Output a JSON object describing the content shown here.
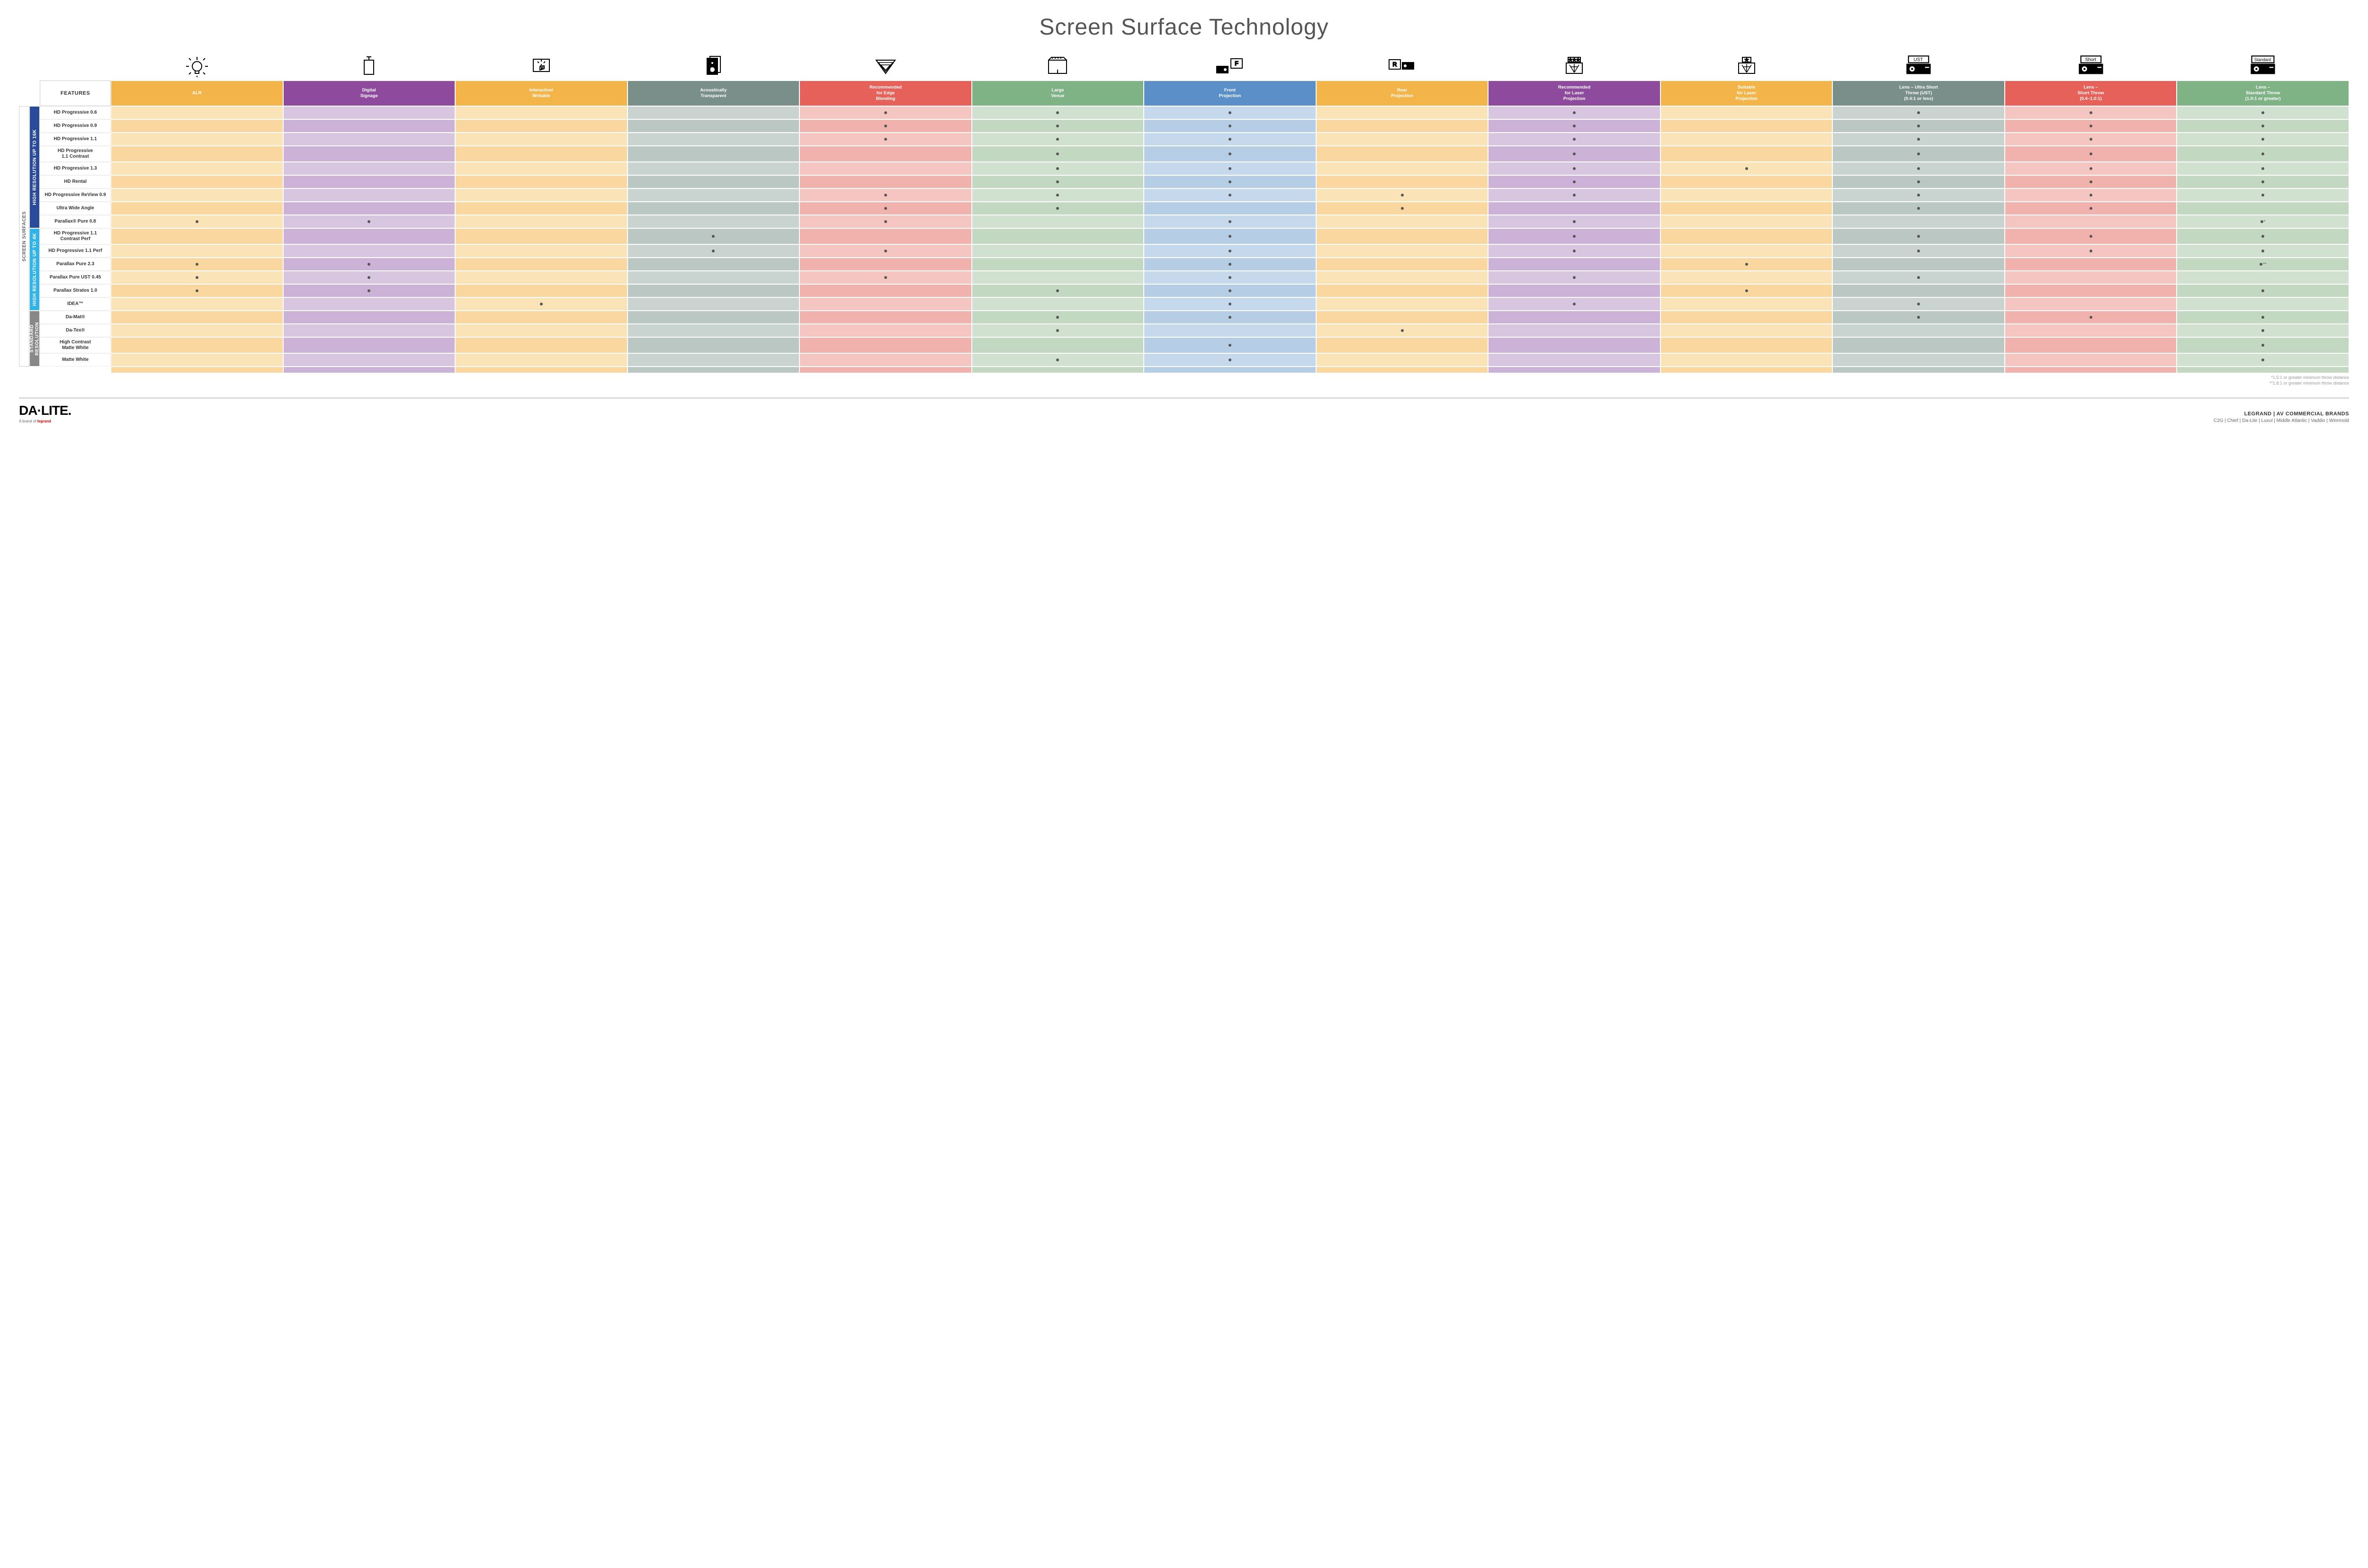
{
  "title": "Screen Surface Technology",
  "featuresLabel": "FEATURES",
  "sideOuterLabel": "SCREEN SURFACES",
  "columns": [
    {
      "key": "alr",
      "label": "ALR",
      "color": "#f3b54a",
      "lightA": "#fbe3b8",
      "lightB": "#f9d79e"
    },
    {
      "key": "digsign",
      "label": "Digital\nSignage",
      "color": "#8e4b9e",
      "lightA": "#d8c5e0",
      "lightB": "#cbb2d6"
    },
    {
      "key": "interactive",
      "label": "Interactive/\nWritable",
      "color": "#f3b54a",
      "lightA": "#fbe3b8",
      "lightB": "#f9d79e"
    },
    {
      "key": "acoustic",
      "label": "Acoustically\nTransparent",
      "color": "#7a8f8a",
      "lightA": "#c9d3d0",
      "lightB": "#bac7c3"
    },
    {
      "key": "edge",
      "label": "Recommended\nfor Edge\nBlending",
      "color": "#e6615a",
      "lightA": "#f5c5c1",
      "lightB": "#f1b2ad"
    },
    {
      "key": "venue",
      "label": "Large\nVenue",
      "color": "#7fb285",
      "lightA": "#d0e1cf",
      "lightB": "#c2d8c1"
    },
    {
      "key": "front",
      "label": "Front\nProjection",
      "color": "#5a8fc7",
      "lightA": "#c6d9ec",
      "lightB": "#b5cde5"
    },
    {
      "key": "rear",
      "label": "Rear\nProjection",
      "color": "#f3b54a",
      "lightA": "#fbe3b8",
      "lightB": "#f9d79e"
    },
    {
      "key": "reclaser",
      "label": "Recommended\nfor Laser\nProjection",
      "color": "#8e4b9e",
      "lightA": "#d8c5e0",
      "lightB": "#cbb2d6"
    },
    {
      "key": "suitlaser",
      "label": "Suitable\nfor Laser\nProjection",
      "color": "#f3b54a",
      "lightA": "#fbe3b8",
      "lightB": "#f9d79e"
    },
    {
      "key": "ust",
      "label": "Lens – Ultra Short\nThrow (UST)\n(0.4:1 or less)",
      "color": "#7a8f8a",
      "lightA": "#c9d3d0",
      "lightB": "#bac7c3"
    },
    {
      "key": "short",
      "label": "Lens –\nShort Throw\n(0.4–1.0:1)",
      "color": "#e6615a",
      "lightA": "#f5c5c1",
      "lightB": "#f1b2ad"
    },
    {
      "key": "std",
      "label": "Lens –\nStandard Throw\n(1.0:1 or greater)",
      "color": "#7fb285",
      "lightA": "#d0e1cf",
      "lightB": "#c2d8c1"
    }
  ],
  "groups": [
    {
      "label": "HIGH RESOLUTION UP TO 16K",
      "color": "#2a4b9b",
      "rows": [
        {
          "label": "HD Progressive 0.6",
          "dots": {
            "edge": "",
            "venue": "",
            "front": "",
            "reclaser": "",
            "ust": "",
            "short": "",
            "std": ""
          }
        },
        {
          "label": "HD Progressive 0.9",
          "dots": {
            "edge": "",
            "venue": "",
            "front": "",
            "reclaser": "",
            "ust": "",
            "short": "",
            "std": ""
          }
        },
        {
          "label": "HD Progressive 1.1",
          "dots": {
            "edge": "",
            "venue": "",
            "front": "",
            "reclaser": "",
            "ust": "",
            "short": "",
            "std": ""
          }
        },
        {
          "label": "HD Progressive\n1.1 Contrast",
          "dots": {
            "venue": "",
            "front": "",
            "reclaser": "",
            "ust": "",
            "short": "",
            "std": ""
          }
        },
        {
          "label": "HD Progressive 1.3",
          "dots": {
            "venue": "",
            "front": "",
            "reclaser": "",
            "suitlaser": "",
            "ust": "",
            "short": "",
            "std": ""
          }
        },
        {
          "label": "HD Rental",
          "dots": {
            "venue": "",
            "front": "",
            "reclaser": "",
            "ust": "",
            "short": "",
            "std": ""
          }
        },
        {
          "label": "HD Progressive ReView 0.9",
          "dots": {
            "edge": "",
            "venue": "",
            "front": "",
            "rear": "",
            "reclaser": "",
            "ust": "",
            "short": "",
            "std": ""
          }
        },
        {
          "label": "Ultra Wide Angle",
          "dots": {
            "edge": "",
            "venue": "",
            "rear": "",
            "ust": "",
            "short": ""
          }
        },
        {
          "label": "Parallax® Pure 0.8",
          "dots": {
            "alr": "",
            "digsign": "",
            "edge": "",
            "front": "",
            "reclaser": "",
            "std": "*"
          }
        }
      ]
    },
    {
      "label": "HIGH RESOLUTION UP TO 4K",
      "color": "#2fb4e9",
      "rows": [
        {
          "label": "HD Progressive 1.1\nContrast Perf",
          "dots": {
            "acoustic": "",
            "front": "",
            "reclaser": "",
            "ust": "",
            "short": "",
            "std": ""
          }
        },
        {
          "label": "HD Progressive 1.1 Perf",
          "dots": {
            "acoustic": "",
            "edge": "",
            "front": "",
            "reclaser": "",
            "ust": "",
            "short": "",
            "std": ""
          }
        },
        {
          "label": "Parallax Pure 2.3",
          "dots": {
            "alr": "",
            "digsign": "",
            "front": "",
            "suitlaser": "",
            "std": "**"
          }
        },
        {
          "label": "Parallax Pure UST 0.45",
          "dots": {
            "alr": "",
            "digsign": "",
            "edge": "",
            "front": "",
            "reclaser": "",
            "ust": ""
          }
        },
        {
          "label": "Parallax Stratos 1.0",
          "dots": {
            "alr": "",
            "digsign": "",
            "venue": "",
            "front": "",
            "suitlaser": "",
            "std": ""
          }
        },
        {
          "label": "IDEA™",
          "dots": {
            "interactive": "",
            "front": "",
            "reclaser": "",
            "ust": ""
          }
        }
      ]
    },
    {
      "label": "STANDARD\nRESOLUTION",
      "color": "#888888",
      "rows": [
        {
          "label": "Da-Mat®",
          "dots": {
            "venue": "",
            "front": "",
            "ust": "",
            "short": "",
            "std": ""
          }
        },
        {
          "label": "Da-Tex®",
          "dots": {
            "venue": "",
            "rear": "",
            "std": ""
          }
        },
        {
          "label": "High Contrast\nMatte White",
          "dots": {
            "front": "",
            "std": ""
          }
        },
        {
          "label": "Matte White",
          "dots": {
            "venue": "",
            "front": "",
            "std": ""
          }
        }
      ]
    }
  ],
  "footnotes": [
    "*1.5:1 or greater minimum throw distance",
    "**1.8:1 or greater minimum throw distance"
  ],
  "footer": {
    "logo": "DA·LITE.",
    "logoSub": "A brand of ",
    "logoSubBrand": "legrand",
    "brandsTitle": "LEGRAND | AV COMMERCIAL BRANDS",
    "brandsList": "C2G  |  Chief  |  Da-Lite  |  Luxul  |  Middle Atlantic  |  Vaddio  |  Wiremold"
  },
  "icons": [
    "bulb",
    "signage",
    "touch",
    "speaker",
    "angle",
    "venue",
    "front",
    "rear",
    "reclaser",
    "suitlaser",
    "ust",
    "short",
    "standard"
  ]
}
